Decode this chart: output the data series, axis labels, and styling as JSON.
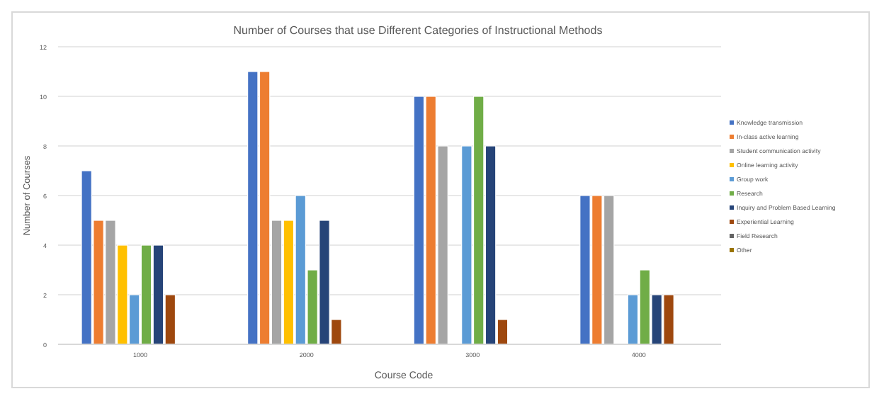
{
  "chart_data": {
    "type": "bar",
    "title": "Number of Courses that use Different Categories of Instructional Methods",
    "xlabel": "Course Code",
    "ylabel": "Number of Courses",
    "categories": [
      "1000",
      "2000",
      "3000",
      "4000"
    ],
    "series": [
      {
        "name": "Knowledge transmission",
        "color": "#4472c4",
        "values": [
          7,
          11,
          10,
          6
        ]
      },
      {
        "name": "In-class active learning",
        "color": "#ed7d31",
        "values": [
          5,
          11,
          10,
          6
        ]
      },
      {
        "name": "Student communication activity",
        "color": "#a5a5a5",
        "values": [
          5,
          5,
          8,
          6
        ]
      },
      {
        "name": "Online learning activity",
        "color": "#ffc000",
        "values": [
          4,
          5,
          0,
          0
        ]
      },
      {
        "name": "Group work",
        "color": "#5b9bd5",
        "values": [
          2,
          6,
          8,
          2
        ]
      },
      {
        "name": "Research",
        "color": "#70ad47",
        "values": [
          4,
          3,
          10,
          3
        ]
      },
      {
        "name": "Inquiry and Problem Based Learning",
        "color": "#264478",
        "values": [
          4,
          5,
          8,
          2
        ]
      },
      {
        "name": "Experiential Learning",
        "color": "#9e480e",
        "values": [
          2,
          1,
          1,
          2
        ]
      },
      {
        "name": "Field Research",
        "color": "#636363",
        "values": [
          0,
          0,
          0,
          0
        ]
      },
      {
        "name": "Other",
        "color": "#997300",
        "values": [
          0,
          0,
          0,
          0
        ]
      }
    ],
    "ylim": [
      0,
      12
    ],
    "yticks": [
      0,
      2,
      4,
      6,
      8,
      10,
      12
    ],
    "grid": "y",
    "legend": "right"
  }
}
